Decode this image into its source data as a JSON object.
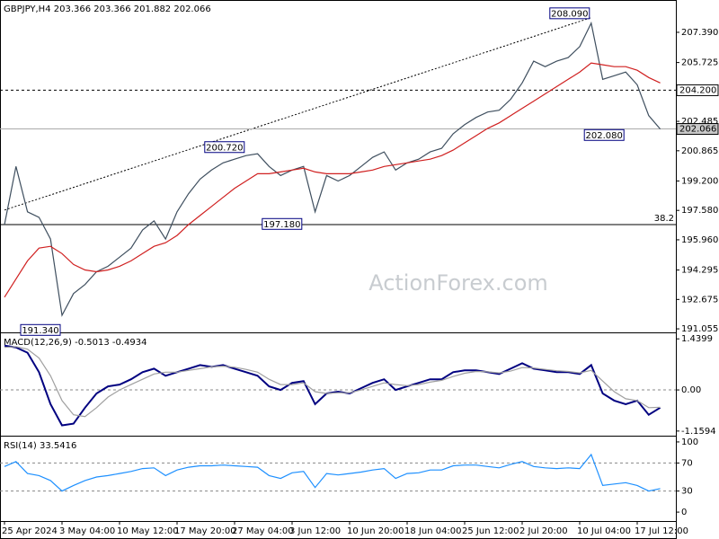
{
  "chart_data": [
    {
      "type": "line",
      "title": "GBPJPY,H4  203.366 203.366 201.882 202.066",
      "watermark": "ActionForex.com",
      "categories": [
        "25 Apr 2024",
        null,
        null,
        null,
        null,
        "3 May 04:00",
        null,
        null,
        null,
        null,
        "10 May 12:00",
        null,
        null,
        null,
        null,
        "17 May 20:00",
        null,
        null,
        null,
        null,
        "27 May 04:00",
        null,
        null,
        null,
        null,
        "3 Jun 12:00",
        null,
        null,
        null,
        null,
        "10 Jun 20:00",
        null,
        null,
        null,
        null,
        "18 Jun 04:00",
        null,
        null,
        null,
        null,
        "25 Jun 12:00",
        null,
        null,
        null,
        null,
        "2 Jul 20:00",
        null,
        null,
        null,
        null,
        "10 Jul 04:00",
        null,
        null,
        null,
        null,
        "17 Jul 12:00",
        null,
        null
      ],
      "series": [
        {
          "color": "#3f4f5f",
          "values": [
            196.8,
            200,
            197.5,
            197.2,
            196,
            191.8,
            193,
            193.5,
            194.2,
            194.5,
            195,
            195.5,
            196.5,
            197,
            196,
            197.5,
            198.5,
            199.3,
            199.8,
            200.2,
            200.4,
            200.6,
            200.7,
            200,
            199.5,
            199.8,
            200,
            197.5,
            199.5,
            199.2,
            199.5,
            200,
            200.5,
            200.8,
            199.8,
            200.2,
            200.4,
            200.8,
            201,
            201.8,
            202.3,
            202.7,
            203,
            203.1,
            203.7,
            204.6,
            205.8,
            205.5,
            205.8,
            206,
            206.6,
            207.9,
            204.8,
            205,
            205.2,
            204.5,
            202.8,
            202.066
          ]
        },
        {
          "color": "#d02020",
          "values": [
            192.8,
            193.8,
            194.8,
            195.5,
            195.6,
            195.2,
            194.6,
            194.3,
            194.2,
            194.3,
            194.5,
            194.8,
            195.2,
            195.6,
            195.8,
            196.2,
            196.8,
            197.3,
            197.8,
            198.3,
            198.8,
            199.2,
            199.6,
            199.6,
            199.7,
            199.8,
            199.9,
            199.7,
            199.6,
            199.6,
            199.6,
            199.7,
            199.8,
            200,
            200.1,
            200.2,
            200.3,
            200.4,
            200.6,
            200.9,
            201.3,
            201.7,
            202.1,
            202.4,
            202.8,
            203.2,
            203.6,
            204,
            204.4,
            204.8,
            205.2,
            205.7,
            205.6,
            205.5,
            205.5,
            205.3,
            204.9,
            204.6
          ]
        }
      ],
      "ylim": [
        190.86,
        209.17
      ],
      "yticks": [
        {
          "value": 207.39,
          "label": "207.390"
        },
        {
          "value": 205.725,
          "label": "205.725"
        },
        {
          "value": 202.485,
          "label": "202.485"
        },
        {
          "value": 200.865,
          "label": "200.865"
        },
        {
          "value": 199.2,
          "label": "199.200"
        },
        {
          "value": 197.58,
          "label": "197.580"
        },
        {
          "value": 195.96,
          "label": "195.960"
        },
        {
          "value": 194.295,
          "label": "194.295"
        },
        {
          "value": 192.675,
          "label": "192.675"
        },
        {
          "value": 191.055,
          "label": "191.055"
        }
      ],
      "trendline": {
        "start_index": 0,
        "start_value": 197.6,
        "end_index": 51,
        "end_value": 208.2
      },
      "hlines": [
        {
          "value": 204.2,
          "label": "204.200",
          "style": "dashed"
        },
        {
          "value": 196.8,
          "label": "38.2",
          "style": "solid"
        },
        {
          "value": 202.066,
          "label": "202.066",
          "style": "price"
        }
      ],
      "annotations": [
        {
          "x_index": 51,
          "value": 208.09,
          "label": "208.090"
        },
        {
          "x_index": 21,
          "value": 200.72,
          "label": "200.720"
        },
        {
          "x_index": 26,
          "value": 197.18,
          "label": "197.180"
        },
        {
          "x_index": 5,
          "value": 191.34,
          "label": "191.340"
        },
        {
          "x_index": 54,
          "value": 202.08,
          "label": "202.080"
        }
      ]
    },
    {
      "type": "line",
      "title": "MACD(12,26,9) -0.5013 -0.4934",
      "series": [
        {
          "color": "#000080",
          "values": [
            1.25,
            1.2,
            1.05,
            0.5,
            -0.4,
            -1.0,
            -0.95,
            -0.5,
            -0.1,
            0.1,
            0.15,
            0.3,
            0.5,
            0.6,
            0.4,
            0.5,
            0.6,
            0.7,
            0.65,
            0.7,
            0.6,
            0.5,
            0.4,
            0.1,
            0.0,
            0.2,
            0.25,
            -0.4,
            -0.1,
            -0.05,
            -0.1,
            0.05,
            0.2,
            0.3,
            0.0,
            0.1,
            0.2,
            0.3,
            0.3,
            0.5,
            0.55,
            0.55,
            0.5,
            0.45,
            0.6,
            0.75,
            0.6,
            0.55,
            0.5,
            0.5,
            0.45,
            0.7,
            -0.1,
            -0.3,
            -0.4,
            -0.3,
            -0.7,
            -0.5
          ]
        },
        {
          "color": "#a0a0a0",
          "values": [
            1.2,
            1.22,
            1.15,
            0.9,
            0.4,
            -0.3,
            -0.7,
            -0.75,
            -0.5,
            -0.2,
            0.0,
            0.15,
            0.3,
            0.45,
            0.5,
            0.5,
            0.55,
            0.6,
            0.65,
            0.67,
            0.64,
            0.58,
            0.5,
            0.3,
            0.15,
            0.15,
            0.2,
            -0.05,
            -0.1,
            -0.08,
            -0.08,
            0.0,
            0.1,
            0.2,
            0.15,
            0.12,
            0.15,
            0.22,
            0.27,
            0.38,
            0.47,
            0.52,
            0.51,
            0.48,
            0.53,
            0.63,
            0.62,
            0.58,
            0.54,
            0.52,
            0.48,
            0.55,
            0.25,
            -0.05,
            -0.25,
            -0.3,
            -0.5,
            -0.49
          ]
        }
      ],
      "ylim": [
        -1.29,
        1.597
      ],
      "yticks": [
        1.4399,
        {
          "value": 0,
          "label": "0.00"
        },
        -1.1594
      ],
      "levels": [
        0
      ]
    },
    {
      "type": "line",
      "title": "RSI(14) 33.5416",
      "series": [
        {
          "color": "#1e90ff",
          "values": [
            65,
            72,
            55,
            52,
            45,
            30,
            38,
            45,
            50,
            52,
            55,
            58,
            62,
            63,
            52,
            60,
            64,
            66,
            66,
            67,
            66,
            65,
            64,
            52,
            48,
            56,
            58,
            35,
            55,
            53,
            55,
            57,
            60,
            62,
            48,
            55,
            56,
            60,
            60,
            66,
            67,
            67,
            65,
            63,
            68,
            72,
            65,
            63,
            62,
            63,
            62,
            82,
            38,
            40,
            42,
            38,
            30,
            33.5416
          ]
        }
      ],
      "ylim": [
        -12.7,
        107.6
      ],
      "yticks": [
        100,
        70,
        30,
        0
      ],
      "levels": [
        70,
        30
      ]
    }
  ]
}
